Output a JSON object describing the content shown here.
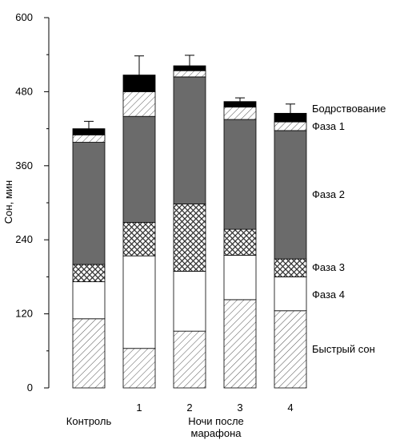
{
  "chart_data": {
    "type": "bar",
    "stacked": true,
    "title": "",
    "ylabel": "Сон, мин",
    "xlabel": "",
    "ylim": [
      0,
      600
    ],
    "y_ticks": [
      "0",
      "120",
      "240",
      "360",
      "480",
      "600"
    ],
    "categories": [
      "Контроль",
      "1",
      "2",
      "3",
      "4"
    ],
    "x_group_label": [
      "Ночи после",
      "марафона"
    ],
    "series": [
      {
        "name": "Быстрый сон",
        "values": [
          112,
          64,
          92,
          143,
          125
        ],
        "pattern": "hatch"
      },
      {
        "name": "Фаза 4",
        "values": [
          60,
          150,
          97,
          72,
          55
        ],
        "pattern": "white"
      },
      {
        "name": "Фаза 3",
        "values": [
          28,
          54,
          109,
          42,
          29
        ],
        "pattern": "crosshatch"
      },
      {
        "name": "Фаза 2",
        "values": [
          198,
          172,
          206,
          178,
          208
        ],
        "pattern": "dark-gray"
      },
      {
        "name": "Фаза 1",
        "values": [
          12,
          40,
          10,
          20,
          14
        ],
        "pattern": "hatch"
      },
      {
        "name": "Бодрствование",
        "values": [
          10,
          27,
          8,
          9,
          14
        ],
        "pattern": "black"
      }
    ],
    "error_bars": [
      12,
      31,
      17,
      6,
      15
    ],
    "grid": false,
    "legend_placement": "right, labels aligned with segments of last bar"
  },
  "colors": {
    "dark_segment": "#6b6b6b",
    "black_segment": "#000000",
    "hatch_stroke": "#444444",
    "axis": "#000000"
  }
}
